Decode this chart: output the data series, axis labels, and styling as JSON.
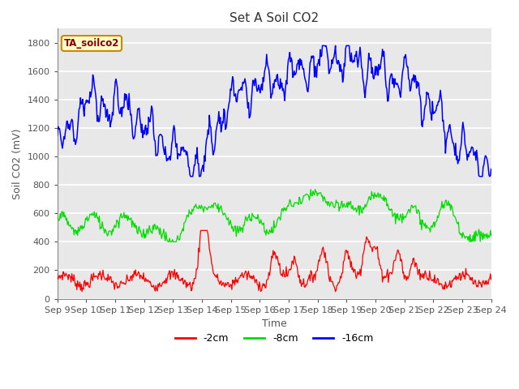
{
  "title": "Set A Soil CO2",
  "xlabel": "Time",
  "ylabel": "Soil CO2 (mV)",
  "legend_label": "TA_soilco2",
  "series_labels": [
    "-2cm",
    "-8cm",
    "-16cm"
  ],
  "series_colors": [
    "#ff0000",
    "#00dd00",
    "#0000ff"
  ],
  "x_tick_labels": [
    "Sep 9",
    "Sep 10",
    "Sep 11",
    "Sep 12",
    "Sep 13",
    "Sep 14",
    "Sep 15",
    "Sep 16",
    "Sep 17",
    "Sep 18",
    "Sep 19",
    "Sep 20",
    "Sep 21",
    "Sep 22",
    "Sep 23",
    "Sep 24"
  ],
  "ylim": [
    0,
    1900
  ],
  "yticks": [
    0,
    200,
    400,
    600,
    800,
    1000,
    1200,
    1400,
    1600,
    1800
  ],
  "fig_bg_color": "#ffffff",
  "plot_bg_color": "#e8e8e8",
  "grid_color": "#ffffff",
  "legend_box_facecolor": "#ffffcc",
  "legend_box_edgecolor": "#cc8800",
  "title_fontsize": 11,
  "axis_label_fontsize": 9,
  "tick_label_fontsize": 8,
  "n_points": 600
}
